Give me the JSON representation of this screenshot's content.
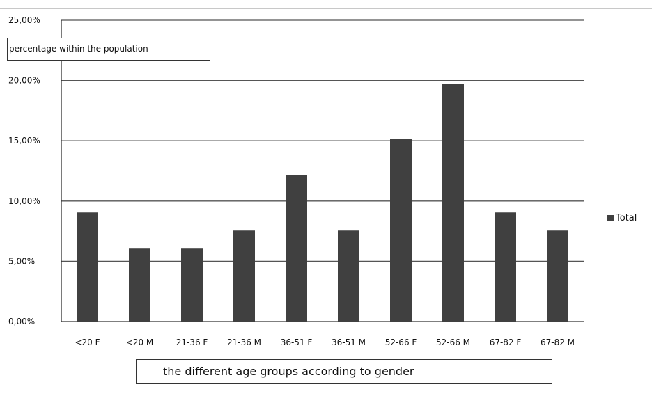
{
  "chart_data": {
    "type": "bar",
    "categories": [
      "<20 F",
      "<20 M",
      "21-36 F",
      "21-36 M",
      "36-51 F",
      "36-51 M",
      "52-66 F",
      "52-66 M",
      "67-82 F",
      "67-82 M"
    ],
    "series": [
      {
        "name": "Total",
        "values": [
          0.0905,
          0.0605,
          0.0605,
          0.0755,
          0.1215,
          0.0755,
          0.1515,
          0.197,
          0.0905,
          0.0755
        ]
      }
    ],
    "ylabel": "percentage within the population",
    "xlabel": "the different age groups according to gender",
    "ylim": [
      0,
      0.25
    ],
    "yticks": [
      "0,00%",
      "5,00%",
      "10,00%",
      "15,00%",
      "20,00%",
      "25,00%"
    ],
    "grid": true,
    "legend_position": "right",
    "colors": {
      "bar": "#404040",
      "grid": "#555555",
      "text": "#111111"
    }
  }
}
